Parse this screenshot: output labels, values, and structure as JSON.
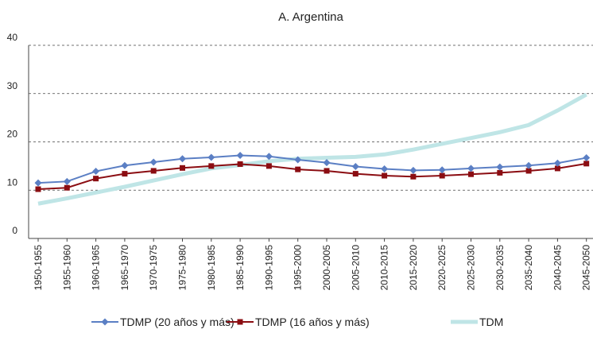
{
  "chart_data": {
    "type": "line",
    "title": "A. Argentina",
    "categories": [
      "1950-1955",
      "1955-1960",
      "1960-1965",
      "1965-1970",
      "1970-1975",
      "1975-1980",
      "1980-1985",
      "1985-1990",
      "1990-1995",
      "1995-2000",
      "2000-2005",
      "2005-2010",
      "2010-2015",
      "2015-2020",
      "2020-2025",
      "2025-2030",
      "2030-2035",
      "2035-2040",
      "2040-2045",
      "2045-2050"
    ],
    "series": [
      {
        "name": "TDMP (20 años y más)",
        "color": "#5b7fc4",
        "marker": "diamond",
        "values": [
          11.5,
          11.8,
          13.9,
          15.1,
          15.8,
          16.5,
          16.8,
          17.2,
          17.0,
          16.3,
          15.7,
          14.9,
          14.4,
          14.1,
          14.2,
          14.5,
          14.8,
          15.1,
          15.6,
          16.7
        ]
      },
      {
        "name": "TDMP (16 años y más)",
        "color": "#8b0d12",
        "marker": "square",
        "values": [
          10.2,
          10.5,
          12.4,
          13.4,
          14.0,
          14.6,
          15.0,
          15.4,
          15.0,
          14.3,
          14.0,
          13.4,
          13.0,
          12.8,
          13.0,
          13.3,
          13.6,
          14.0,
          14.5,
          15.5
        ]
      },
      {
        "name": "TDM",
        "color": "#bfe5e6",
        "marker": "none",
        "values": [
          7.2,
          8.3,
          9.5,
          10.7,
          12.0,
          13.3,
          14.5,
          15.2,
          16.0,
          16.5,
          16.7,
          16.9,
          17.4,
          18.4,
          19.6,
          20.8,
          22.0,
          23.5,
          26.5,
          29.8
        ]
      }
    ],
    "ylim": [
      0,
      40
    ],
    "yticks": [
      0,
      10,
      20,
      30,
      40
    ],
    "grid": true
  }
}
